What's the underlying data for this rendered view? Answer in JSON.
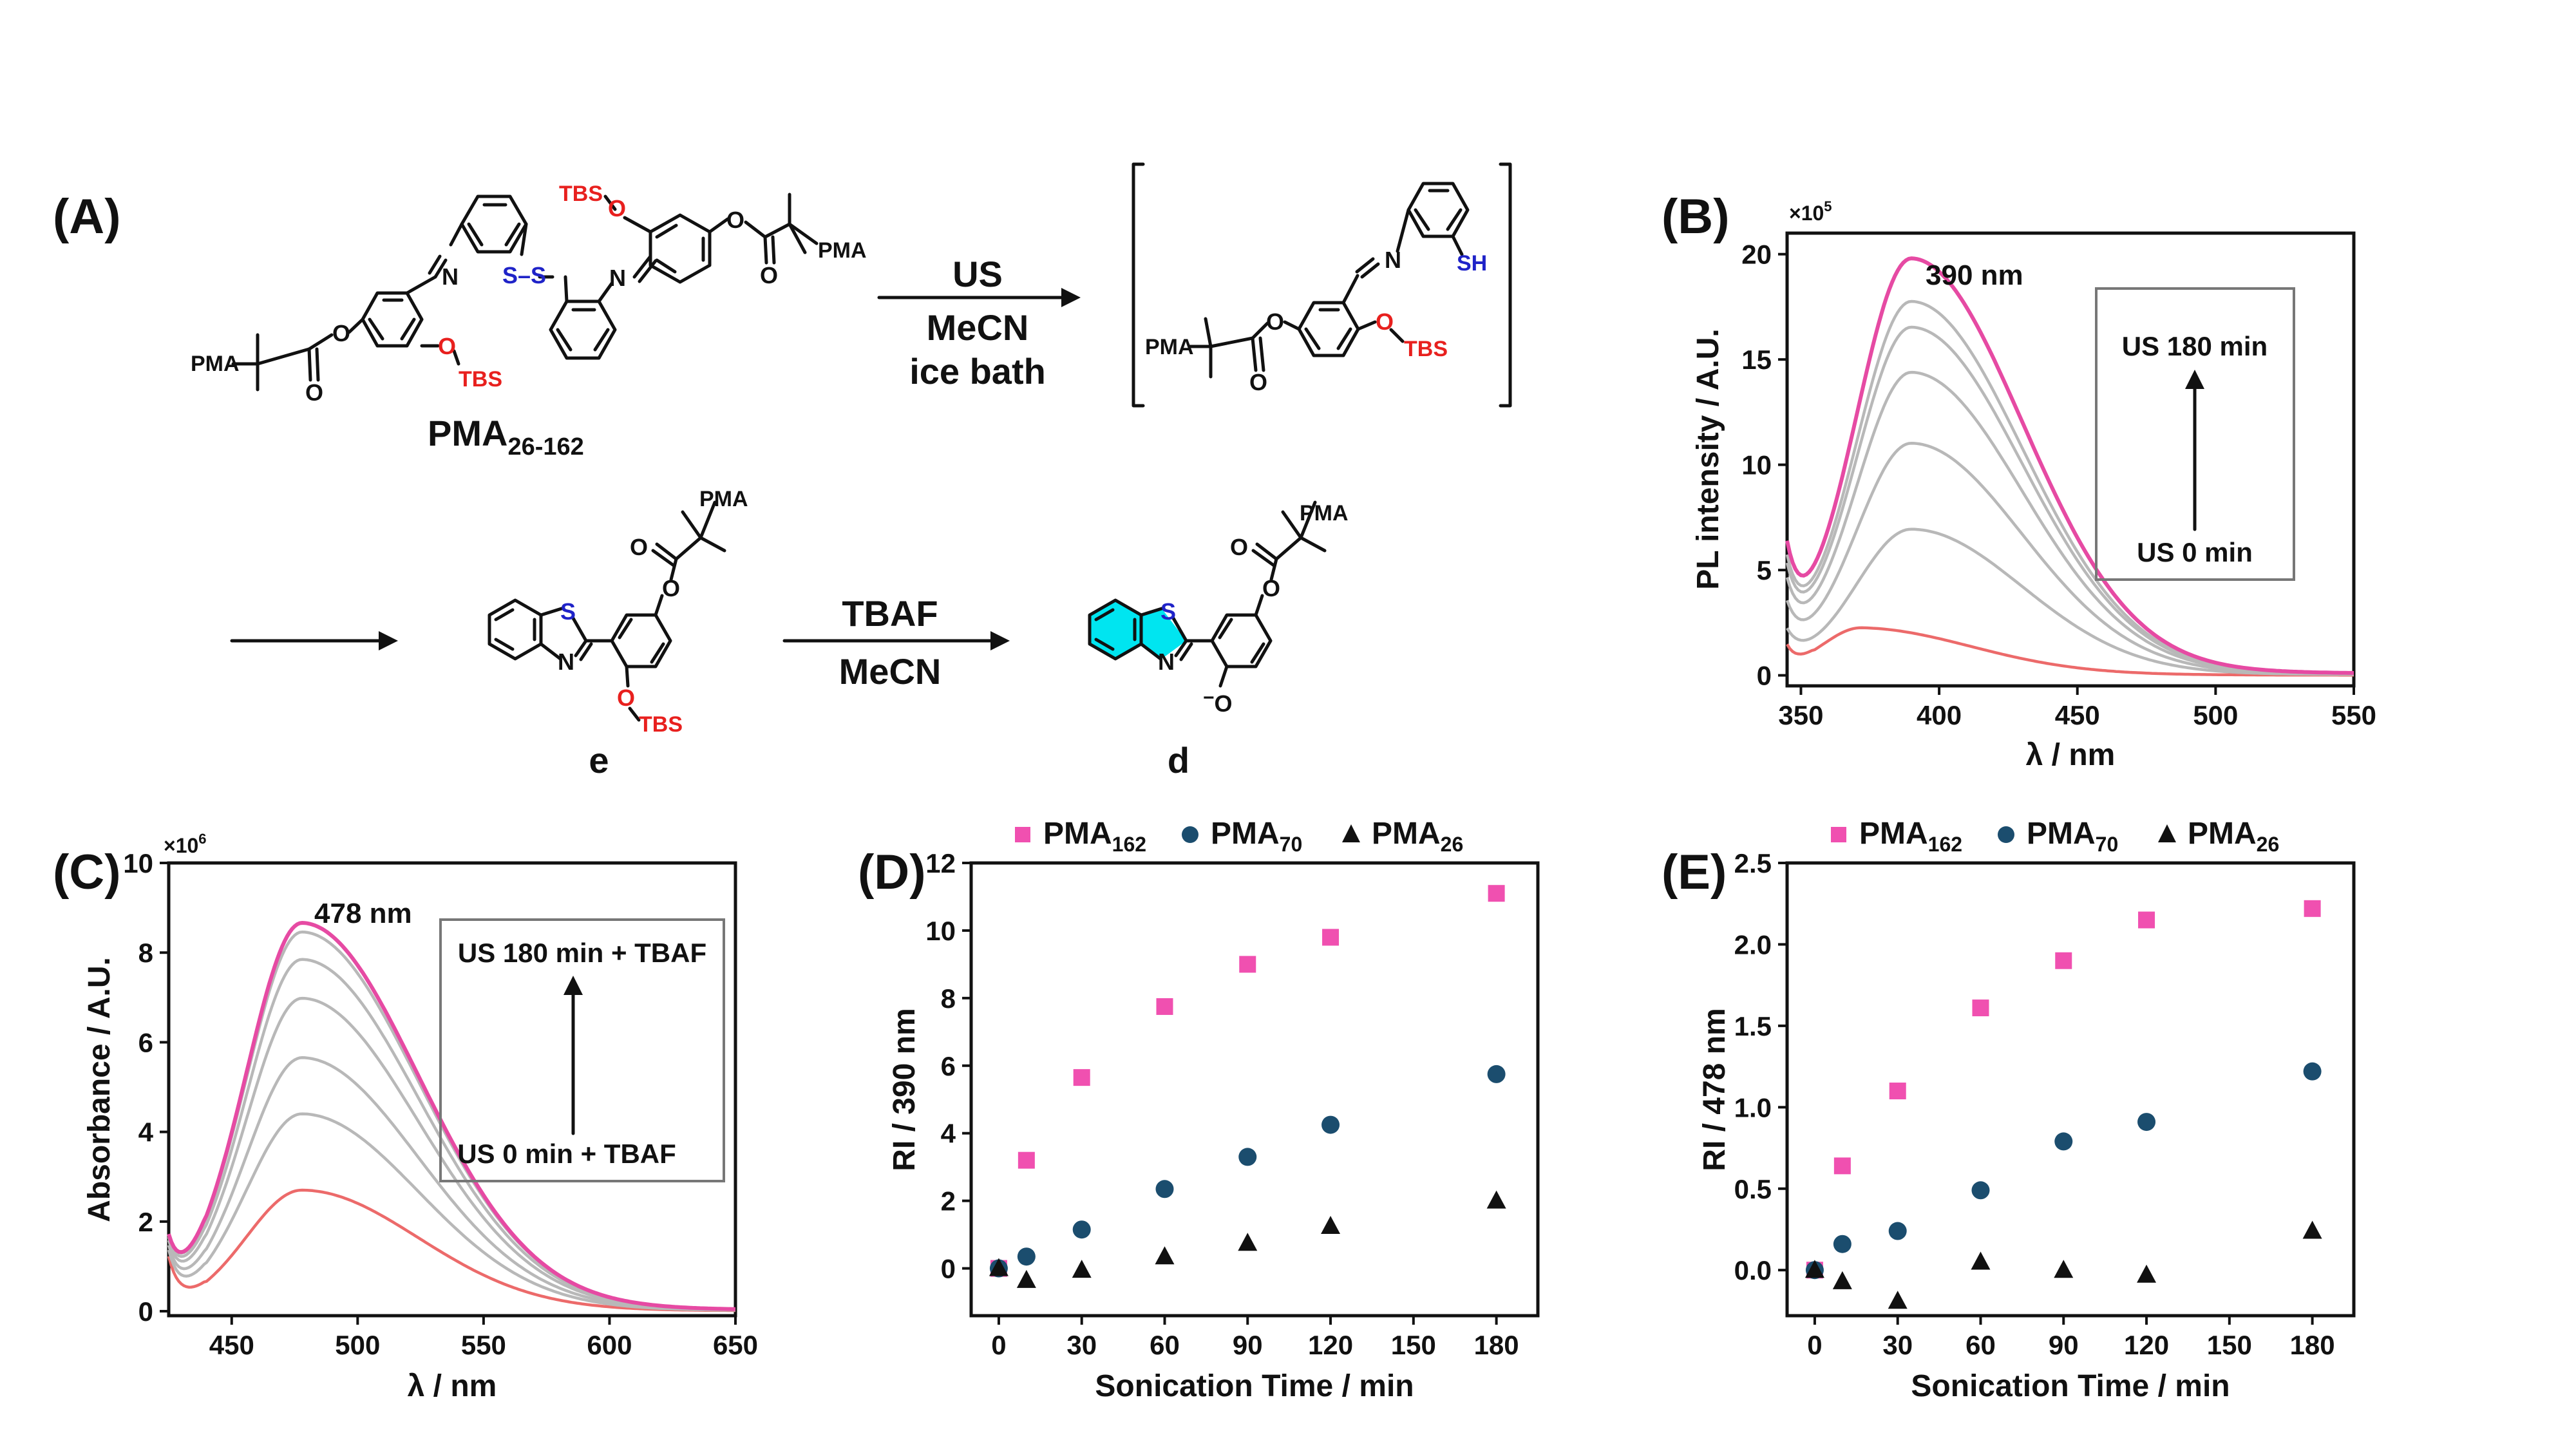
{
  "colors": {
    "accent": "#e64aa3",
    "series_pink": "#f050b0",
    "series_blue": "#1b4d6e",
    "series_black": "#111111",
    "red": "#e8201e",
    "blue": "#1f23c8",
    "cyan": "#00e5f0",
    "gray": "#b8b8b8",
    "salmon": "#ec6a6a"
  },
  "scheme": {
    "panel_label": "(A)",
    "step1_reagent": "US",
    "step1_solvent": "MeCN",
    "step1_condition": "ice bath",
    "step2_reagent": "TBAF",
    "step2_solvent": "MeCN",
    "compound1_name": "PMA",
    "compound1_sub": "26-162",
    "compound_e": "e",
    "compound_d": "d",
    "atoms": {
      "pma": "PMA",
      "tbs": "TBS",
      "o": "O",
      "n": "N",
      "s": "S",
      "sh": "SH",
      "ss": "S–S",
      "ominus": "O",
      "minus": "−"
    }
  },
  "chart_data": [
    {
      "panel": "(B)",
      "type": "line",
      "xlabel": "λ / nm",
      "ylabel": "PL intensity / A.U.",
      "y_multiplier": "×10",
      "y_multiplier_exp": "5",
      "xlim": [
        345,
        550
      ],
      "ylim": [
        -0.5,
        21
      ],
      "xticks": [
        350,
        400,
        450,
        500,
        550
      ],
      "yticks": [
        0,
        5,
        10,
        15,
        20
      ],
      "peak_label": "390 nm",
      "inset": {
        "top": "US 180 min",
        "bottom": "US 0 min"
      },
      "series": [
        {
          "color": "#ec6a6a",
          "peak": 2.1
        },
        {
          "color": "#b8b8b8",
          "peak": 6.8
        },
        {
          "color": "#b8b8b8",
          "peak": 10.8
        },
        {
          "color": "#b8b8b8",
          "peak": 14.1
        },
        {
          "color": "#b8b8b8",
          "peak": 16.2
        },
        {
          "color": "#b8b8b8",
          "peak": 17.4
        },
        {
          "color": "#e64aa3",
          "peak": 19.4
        }
      ]
    },
    {
      "panel": "(C)",
      "type": "line",
      "xlabel": "λ / nm",
      "ylabel": "Absorbance / A.U.",
      "y_multiplier": "×10",
      "y_multiplier_exp": "6",
      "xlim": [
        425,
        650
      ],
      "ylim": [
        -0.1,
        10
      ],
      "xticks": [
        450,
        500,
        550,
        600,
        650
      ],
      "yticks": [
        0,
        2,
        4,
        6,
        8,
        10
      ],
      "peak_label": "478 nm",
      "inset": {
        "top": "US 180 min + TBAF",
        "bottom": "US 0 min + TBAF"
      },
      "series": [
        {
          "color": "#ec6a6a",
          "peak": 2.65
        },
        {
          "color": "#b8b8b8",
          "peak": 4.32
        },
        {
          "color": "#b8b8b8",
          "peak": 5.55
        },
        {
          "color": "#b8b8b8",
          "peak": 6.85
        },
        {
          "color": "#b8b8b8",
          "peak": 7.7
        },
        {
          "color": "#b8b8b8",
          "peak": 8.3
        },
        {
          "color": "#e64aa3",
          "peak": 8.5
        }
      ]
    },
    {
      "panel": "(D)",
      "type": "scatter",
      "xlabel": "Sonication Time / min",
      "ylabel": "RI / 390 nm",
      "xlim": [
        -10,
        195
      ],
      "ylim": [
        -1.4,
        12
      ],
      "xticks": [
        0,
        30,
        60,
        90,
        120,
        150,
        180
      ],
      "yticks": [
        0,
        2,
        4,
        6,
        8,
        10,
        12
      ],
      "legend": [
        {
          "name": "PMA",
          "sub": "162"
        },
        {
          "name": "PMA",
          "sub": "70"
        },
        {
          "name": "PMA",
          "sub": "26"
        }
      ],
      "x": [
        0,
        10,
        30,
        60,
        90,
        120,
        180
      ],
      "series": [
        {
          "name": "PMA162",
          "marker": "square",
          "color": "#f050b0",
          "values": [
            0,
            3.2,
            5.65,
            7.75,
            9.0,
            9.8,
            11.1
          ]
        },
        {
          "name": "PMA70",
          "marker": "circle",
          "color": "#1b4d6e",
          "values": [
            0,
            0.35,
            1.15,
            2.35,
            3.3,
            4.25,
            5.75
          ]
        },
        {
          "name": "PMA26",
          "marker": "triangle",
          "color": "#111111",
          "values": [
            0,
            -0.35,
            -0.05,
            0.35,
            0.75,
            1.25,
            2.0
          ]
        }
      ]
    },
    {
      "panel": "(E)",
      "type": "scatter",
      "xlabel": "Sonication Time / min",
      "ylabel": "RI / 478 nm",
      "xlim": [
        -10,
        195
      ],
      "ylim": [
        -0.28,
        2.5
      ],
      "xticks": [
        0,
        30,
        60,
        90,
        120,
        150,
        180
      ],
      "yticks": [
        0.0,
        0.5,
        1.0,
        1.5,
        2.0,
        2.5
      ],
      "ytick_labels": [
        "0.0",
        "0.5",
        "1.0",
        "1.5",
        "2.0",
        "2.5"
      ],
      "legend": [
        {
          "name": "PMA",
          "sub": "162"
        },
        {
          "name": "PMA",
          "sub": "70"
        },
        {
          "name": "PMA",
          "sub": "26"
        }
      ],
      "x": [
        0,
        10,
        30,
        60,
        90,
        120,
        180
      ],
      "series": [
        {
          "name": "PMA162",
          "marker": "square",
          "color": "#f050b0",
          "values": [
            0,
            0.64,
            1.1,
            1.61,
            1.9,
            2.15,
            2.22
          ]
        },
        {
          "name": "PMA70",
          "marker": "circle",
          "color": "#1b4d6e",
          "values": [
            0,
            0.16,
            0.24,
            0.49,
            0.79,
            0.91,
            1.22
          ]
        },
        {
          "name": "PMA26",
          "marker": "triangle",
          "color": "#111111",
          "values": [
            0,
            -0.07,
            -0.19,
            0.05,
            0.0,
            -0.03,
            0.24
          ]
        }
      ]
    }
  ]
}
